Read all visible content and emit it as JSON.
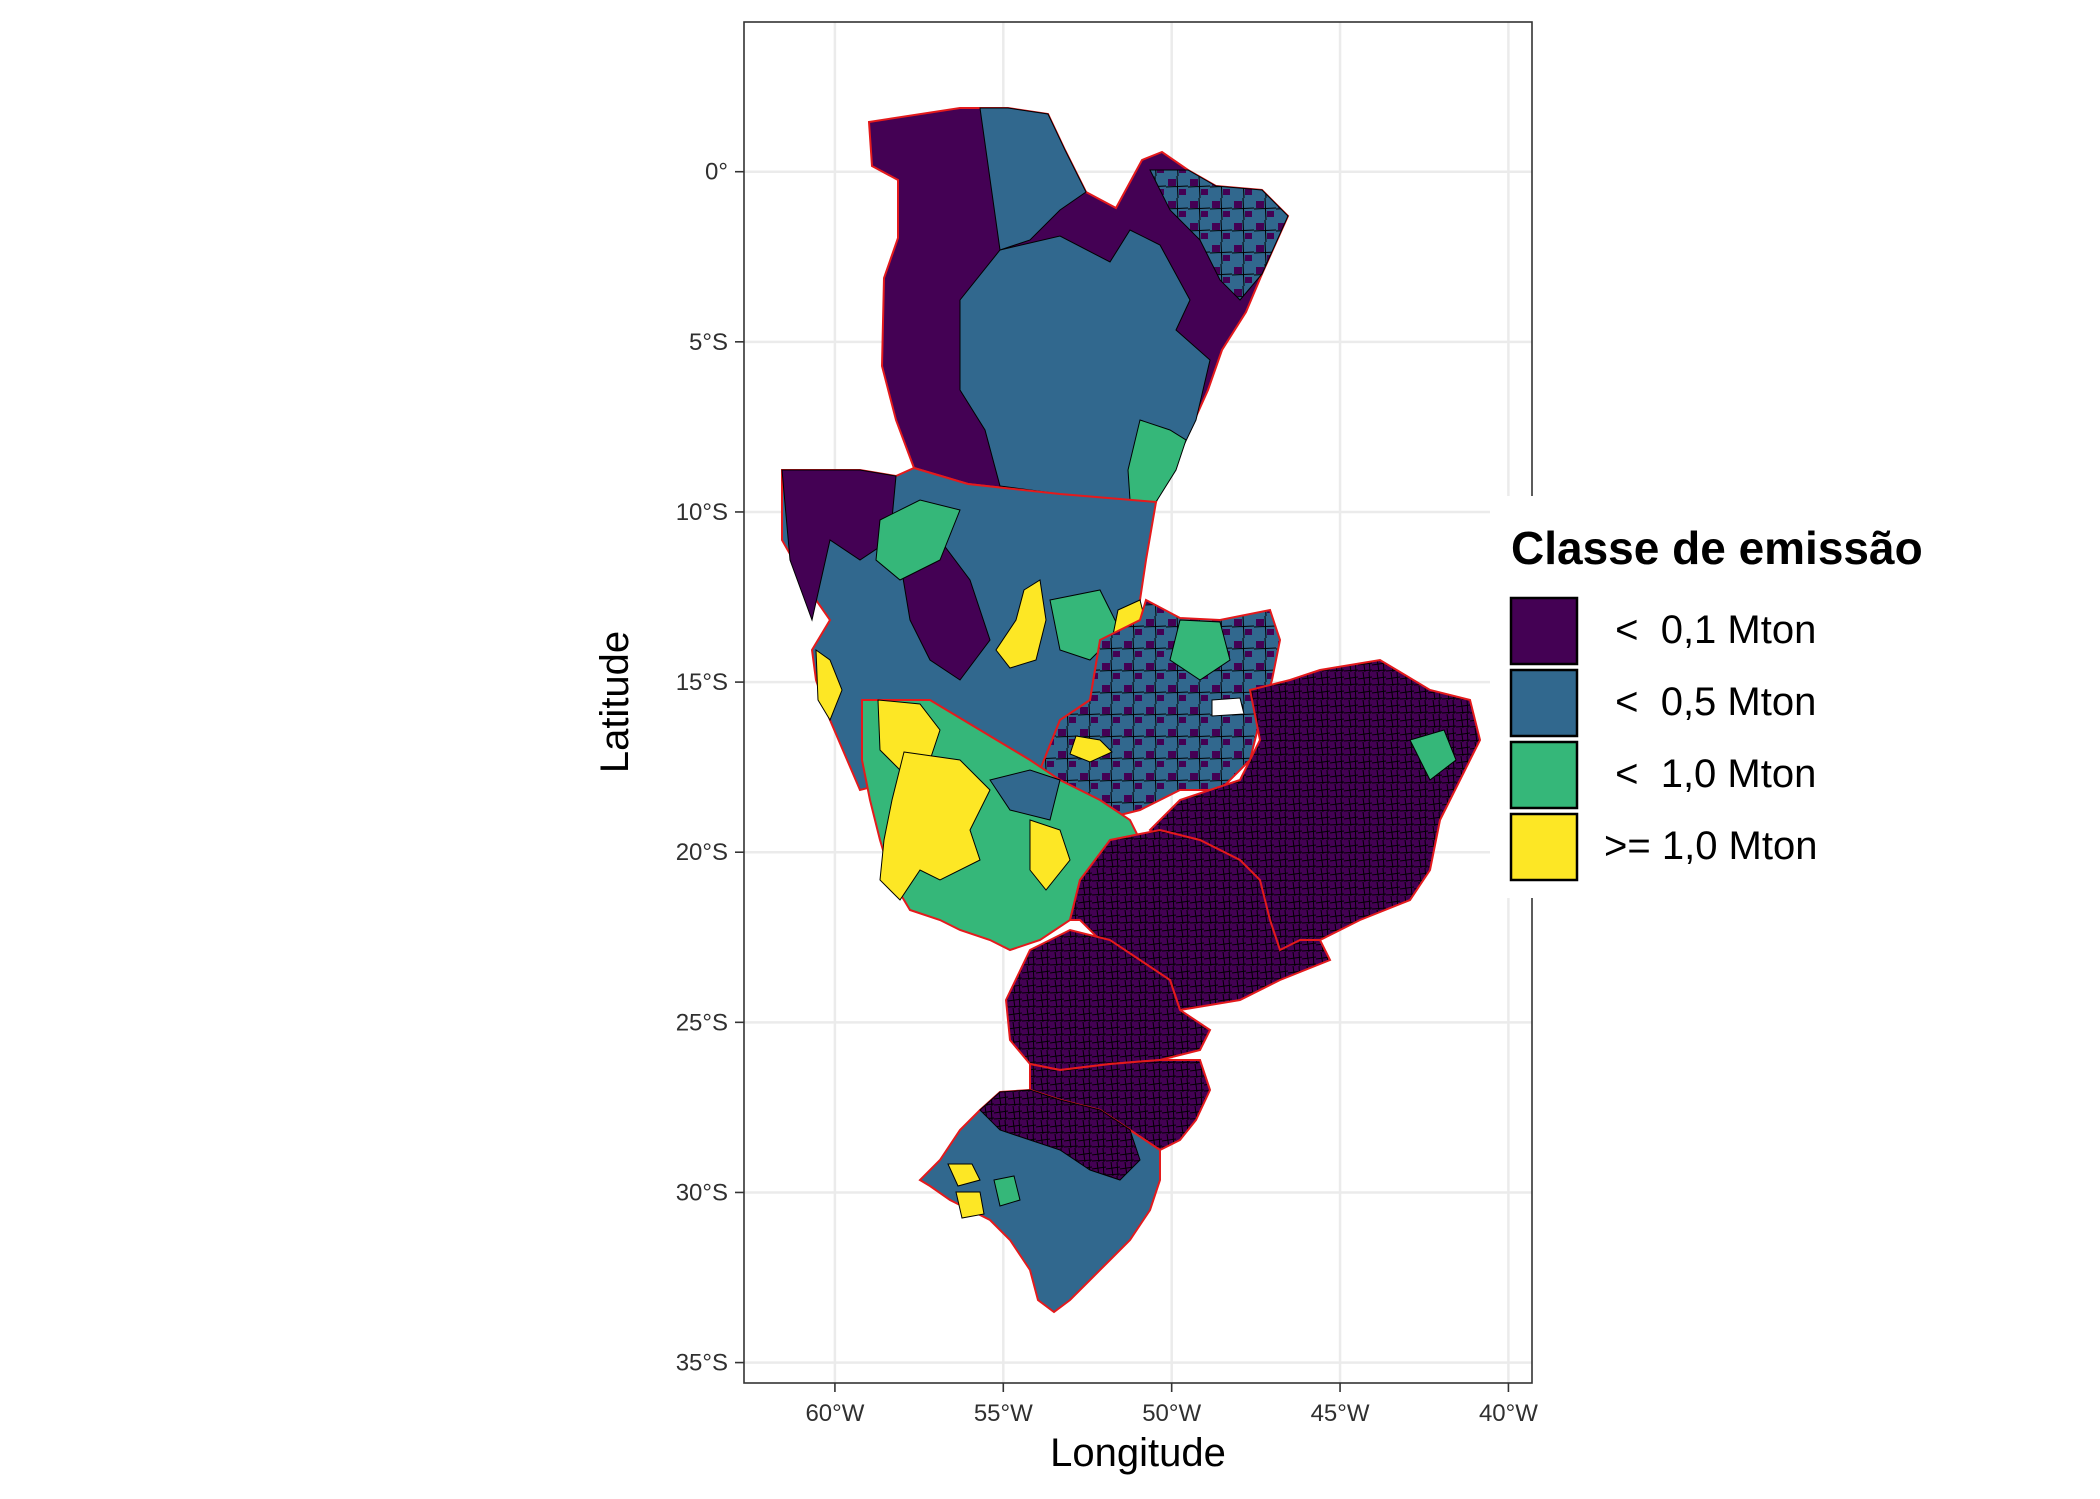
{
  "map": {
    "type": "choropleth",
    "x_axis": {
      "title": "Longitude",
      "ticks": [
        {
          "value": -60,
          "label": "60°W"
        },
        {
          "value": -55,
          "label": "55°W"
        },
        {
          "value": -50,
          "label": "50°W"
        },
        {
          "value": -45,
          "label": "45°W"
        },
        {
          "value": -40,
          "label": "40°W"
        }
      ],
      "range": [
        -62.7,
        -39.3
      ]
    },
    "y_axis": {
      "title": "Latitude",
      "ticks": [
        {
          "value": 0,
          "label": "0°"
        },
        {
          "value": -5,
          "label": "5°S"
        },
        {
          "value": -10,
          "label": "10°S"
        },
        {
          "value": -15,
          "label": "15°S"
        },
        {
          "value": -20,
          "label": "20°S"
        },
        {
          "value": -25,
          "label": "25°S"
        },
        {
          "value": -30,
          "label": "30°S"
        },
        {
          "value": -35,
          "label": "35°S"
        }
      ],
      "range": [
        -35.6,
        4.4
      ]
    },
    "grid": true,
    "legend": {
      "title": "Classe de emissão",
      "placement": "right",
      "entries": [
        {
          "label": " <  0,1 Mton",
          "color": "#440154"
        },
        {
          "label": " <  0,5 Mton",
          "color": "#31688E"
        },
        {
          "label": " <  1,0 Mton",
          "color": "#35B779"
        },
        {
          "label": ">= 1,0 Mton",
          "color": "#FDE725"
        }
      ]
    },
    "colors": {
      "state_border": "#E41A1C",
      "municipality_border": "#000000",
      "grid": "#EBEBEB",
      "panel_border": "#333333"
    }
  }
}
